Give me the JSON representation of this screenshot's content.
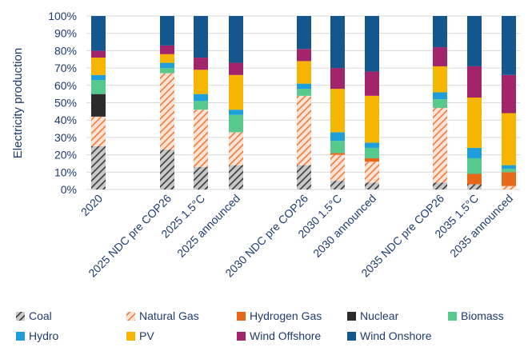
{
  "chart_data": {
    "type": "bar",
    "stacked": true,
    "ylabel": "Electricity production",
    "ylim": [
      0,
      100
    ],
    "yticks": [
      "0%",
      "10%",
      "20%",
      "30%",
      "40%",
      "50%",
      "60%",
      "70%",
      "80%",
      "90%",
      "100%"
    ],
    "grid": true,
    "legend_position": "bottom",
    "categories": [
      "2020",
      "2025 NDC pre COP26",
      "2025 1.5°C",
      "2025 announced",
      "2030 NDC pre COP26",
      "2030 1.5°C",
      "2030 announced",
      "2035 NDC pre COP26",
      "2035 1.5°C",
      "2035 announced"
    ],
    "series": [
      {
        "name": "Coal",
        "color": "#3a3a3a",
        "pattern": "hatch-dark",
        "values": [
          25,
          23,
          13,
          14,
          14,
          5,
          4,
          4,
          3,
          0
        ]
      },
      {
        "name": "Natural Gas",
        "color": "#f26c21",
        "pattern": "hatch-orange",
        "values": [
          17,
          44,
          33,
          19,
          40,
          15,
          12,
          43,
          0,
          2
        ]
      },
      {
        "name": "Hydrogen Gas",
        "color": "#e8681a",
        "pattern": "solid",
        "values": [
          0,
          0,
          0,
          0,
          0,
          1,
          2,
          0,
          6,
          8
        ]
      },
      {
        "name": "Nuclear",
        "color": "#2b2b2b",
        "pattern": "solid",
        "values": [
          13,
          0,
          0,
          0,
          0,
          0,
          0,
          0,
          0,
          0
        ]
      },
      {
        "name": "Biomass",
        "color": "#58c98d",
        "pattern": "solid",
        "values": [
          8,
          3,
          5,
          10,
          4,
          7,
          6,
          5,
          9,
          2
        ]
      },
      {
        "name": "Hydro",
        "color": "#1e9fd9",
        "pattern": "solid",
        "values": [
          3,
          3,
          4,
          3,
          3,
          5,
          3,
          4,
          6,
          2
        ]
      },
      {
        "name": "PV",
        "color": "#f5b500",
        "pattern": "solid",
        "values": [
          10,
          5,
          14,
          20,
          13,
          25,
          27,
          15,
          29,
          30
        ]
      },
      {
        "name": "Wind Offshore",
        "color": "#a3246a",
        "pattern": "solid",
        "values": [
          4,
          5,
          7,
          7,
          7,
          12,
          14,
          11,
          18,
          22
        ]
      },
      {
        "name": "Wind Onshore",
        "color": "#14578f",
        "pattern": "solid",
        "values": [
          20,
          17,
          24,
          27,
          19,
          30,
          32,
          18,
          29,
          34
        ]
      }
    ]
  }
}
